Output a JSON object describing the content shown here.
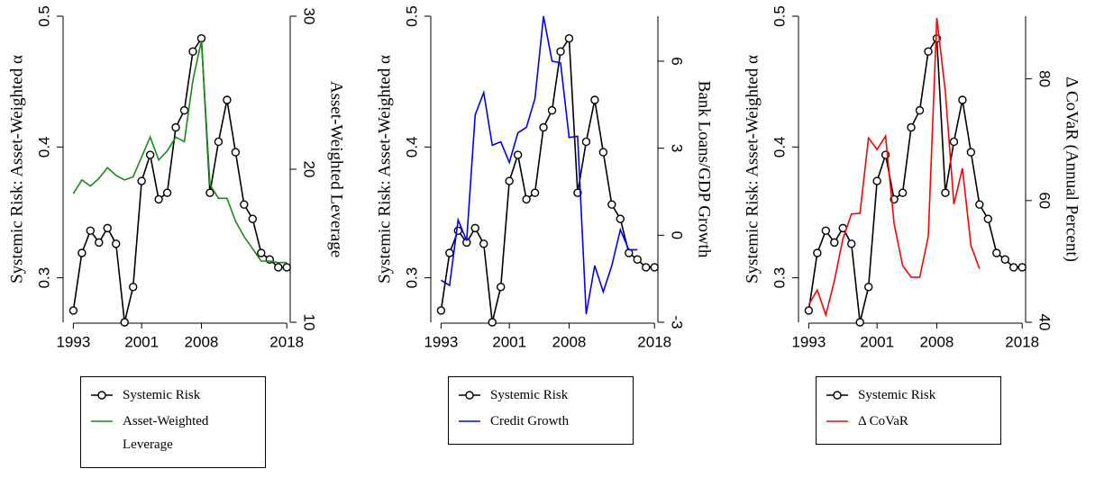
{
  "chart_data": [
    {
      "type": "line",
      "x": [
        1993,
        1994,
        1995,
        1996,
        1997,
        1998,
        1999,
        2000,
        2001,
        2002,
        2003,
        2004,
        2005,
        2006,
        2007,
        2008,
        2009,
        2010,
        2011,
        2012,
        2013,
        2014,
        2015,
        2016,
        2017,
        2018
      ],
      "xlim": [
        1991.8,
        2018.4
      ],
      "xticks": [
        1993,
        2001,
        2008,
        2018
      ],
      "ylim": [
        0.266,
        0.5
      ],
      "yticks": [
        0.3,
        0.4,
        0.5
      ],
      "y2lim": [
        10,
        30
      ],
      "y2ticks": [
        10,
        20,
        30
      ],
      "ylabel": "Systemic Risk: Asset-Weighted α",
      "y2label": "Asset-Weighted Leverage",
      "series": [
        {
          "name": "Systemic Risk",
          "color": "#000000",
          "markers": true,
          "values": [
            0.275,
            0.319,
            0.336,
            0.327,
            0.338,
            0.326,
            0.266,
            0.293,
            0.374,
            0.394,
            0.36,
            0.365,
            0.415,
            0.428,
            0.473,
            0.483,
            0.365,
            0.404,
            0.436,
            0.396,
            0.356,
            0.345,
            0.319,
            0.314,
            0.308,
            0.308
          ]
        },
        {
          "name": "Asset-Weighted Leverage",
          "color": "#1a8a1a",
          "axis": "y2",
          "values": [
            18.4,
            19.3,
            18.9,
            19.4,
            20.1,
            19.6,
            19.3,
            19.5,
            20.8,
            22.1,
            20.6,
            21.2,
            22.1,
            21.8,
            25.8,
            28.4,
            19.0,
            18.1,
            18.1,
            16.6,
            15.6,
            14.8,
            14.0,
            14.0,
            13.9,
            13.9
          ]
        }
      ]
    },
    {
      "type": "line",
      "x": [
        1993,
        1994,
        1995,
        1996,
        1997,
        1998,
        1999,
        2000,
        2001,
        2002,
        2003,
        2004,
        2005,
        2006,
        2007,
        2008,
        2009,
        2010,
        2011,
        2012,
        2013,
        2014,
        2015,
        2016,
        2017,
        2018
      ],
      "xlim": [
        1991.8,
        2018.4
      ],
      "xticks": [
        1993,
        2001,
        2008,
        2018
      ],
      "ylim": [
        0.266,
        0.5
      ],
      "yticks": [
        0.3,
        0.4,
        0.5
      ],
      "y2lim": [
        -3,
        7.55
      ],
      "y2ticks": [
        -3,
        0,
        3,
        6
      ],
      "ylabel": "Systemic Risk: Asset-Weighted α",
      "y2label": "Bank Loans/GDP Growth",
      "series": [
        {
          "name": "Systemic Risk",
          "color": "#000000",
          "markers": true,
          "values": [
            0.275,
            0.319,
            0.336,
            0.327,
            0.338,
            0.326,
            0.266,
            0.293,
            0.374,
            0.394,
            0.36,
            0.365,
            0.415,
            0.428,
            0.473,
            0.483,
            0.365,
            0.404,
            0.436,
            0.396,
            0.356,
            0.345,
            0.319,
            0.314,
            0.308,
            0.308
          ]
        },
        {
          "name": "Credit Growth",
          "color": "#0000ff",
          "axis": "y2",
          "values": [
            -1.55,
            -1.73,
            0.53,
            -0.19,
            4.15,
            4.92,
            3.1,
            3.22,
            2.51,
            3.53,
            3.72,
            4.71,
            7.55,
            6.0,
            5.94,
            3.37,
            3.41,
            -2.72,
            -1.05,
            -1.95,
            -1.05,
            0.19,
            -0.5,
            -0.5,
            null,
            null
          ]
        }
      ]
    },
    {
      "type": "line",
      "x": [
        1993,
        1994,
        1995,
        1996,
        1997,
        1998,
        1999,
        2000,
        2001,
        2002,
        2003,
        2004,
        2005,
        2006,
        2007,
        2008,
        2009,
        2010,
        2011,
        2012,
        2013,
        2014,
        2015,
        2016,
        2017,
        2018
      ],
      "xlim": [
        1991.8,
        2018.4
      ],
      "xticks": [
        1993,
        2001,
        2008,
        2018
      ],
      "ylim": [
        0.266,
        0.5
      ],
      "yticks": [
        0.3,
        0.4,
        0.5
      ],
      "y2lim": [
        40,
        90.3
      ],
      "y2ticks": [
        40,
        60,
        80
      ],
      "ylabel": "Systemic Risk: Asset-Weighted α",
      "y2label": "Δ CoVaR (Annual Percent)",
      "series": [
        {
          "name": "Systemic Risk",
          "color": "#000000",
          "markers": true,
          "values": [
            0.275,
            0.319,
            0.336,
            0.327,
            0.338,
            0.326,
            0.266,
            0.293,
            0.374,
            0.394,
            0.36,
            0.365,
            0.415,
            0.428,
            0.473,
            0.483,
            0.365,
            0.404,
            0.436,
            0.396,
            0.356,
            0.345,
            0.319,
            0.314,
            0.308,
            0.308
          ]
        },
        {
          "name": "Δ CoVaR",
          "color": "#ff0000",
          "axis": "y2",
          "values": [
            42.9,
            45.3,
            41.2,
            46.8,
            53.7,
            57.8,
            57.9,
            70.3,
            68.4,
            70.6,
            56.2,
            49.3,
            47.4,
            47.4,
            54.1,
            90.0,
            77.9,
            59.4,
            65.3,
            52.6,
            48.8,
            null,
            null,
            null,
            null,
            null
          ]
        }
      ]
    }
  ]
}
